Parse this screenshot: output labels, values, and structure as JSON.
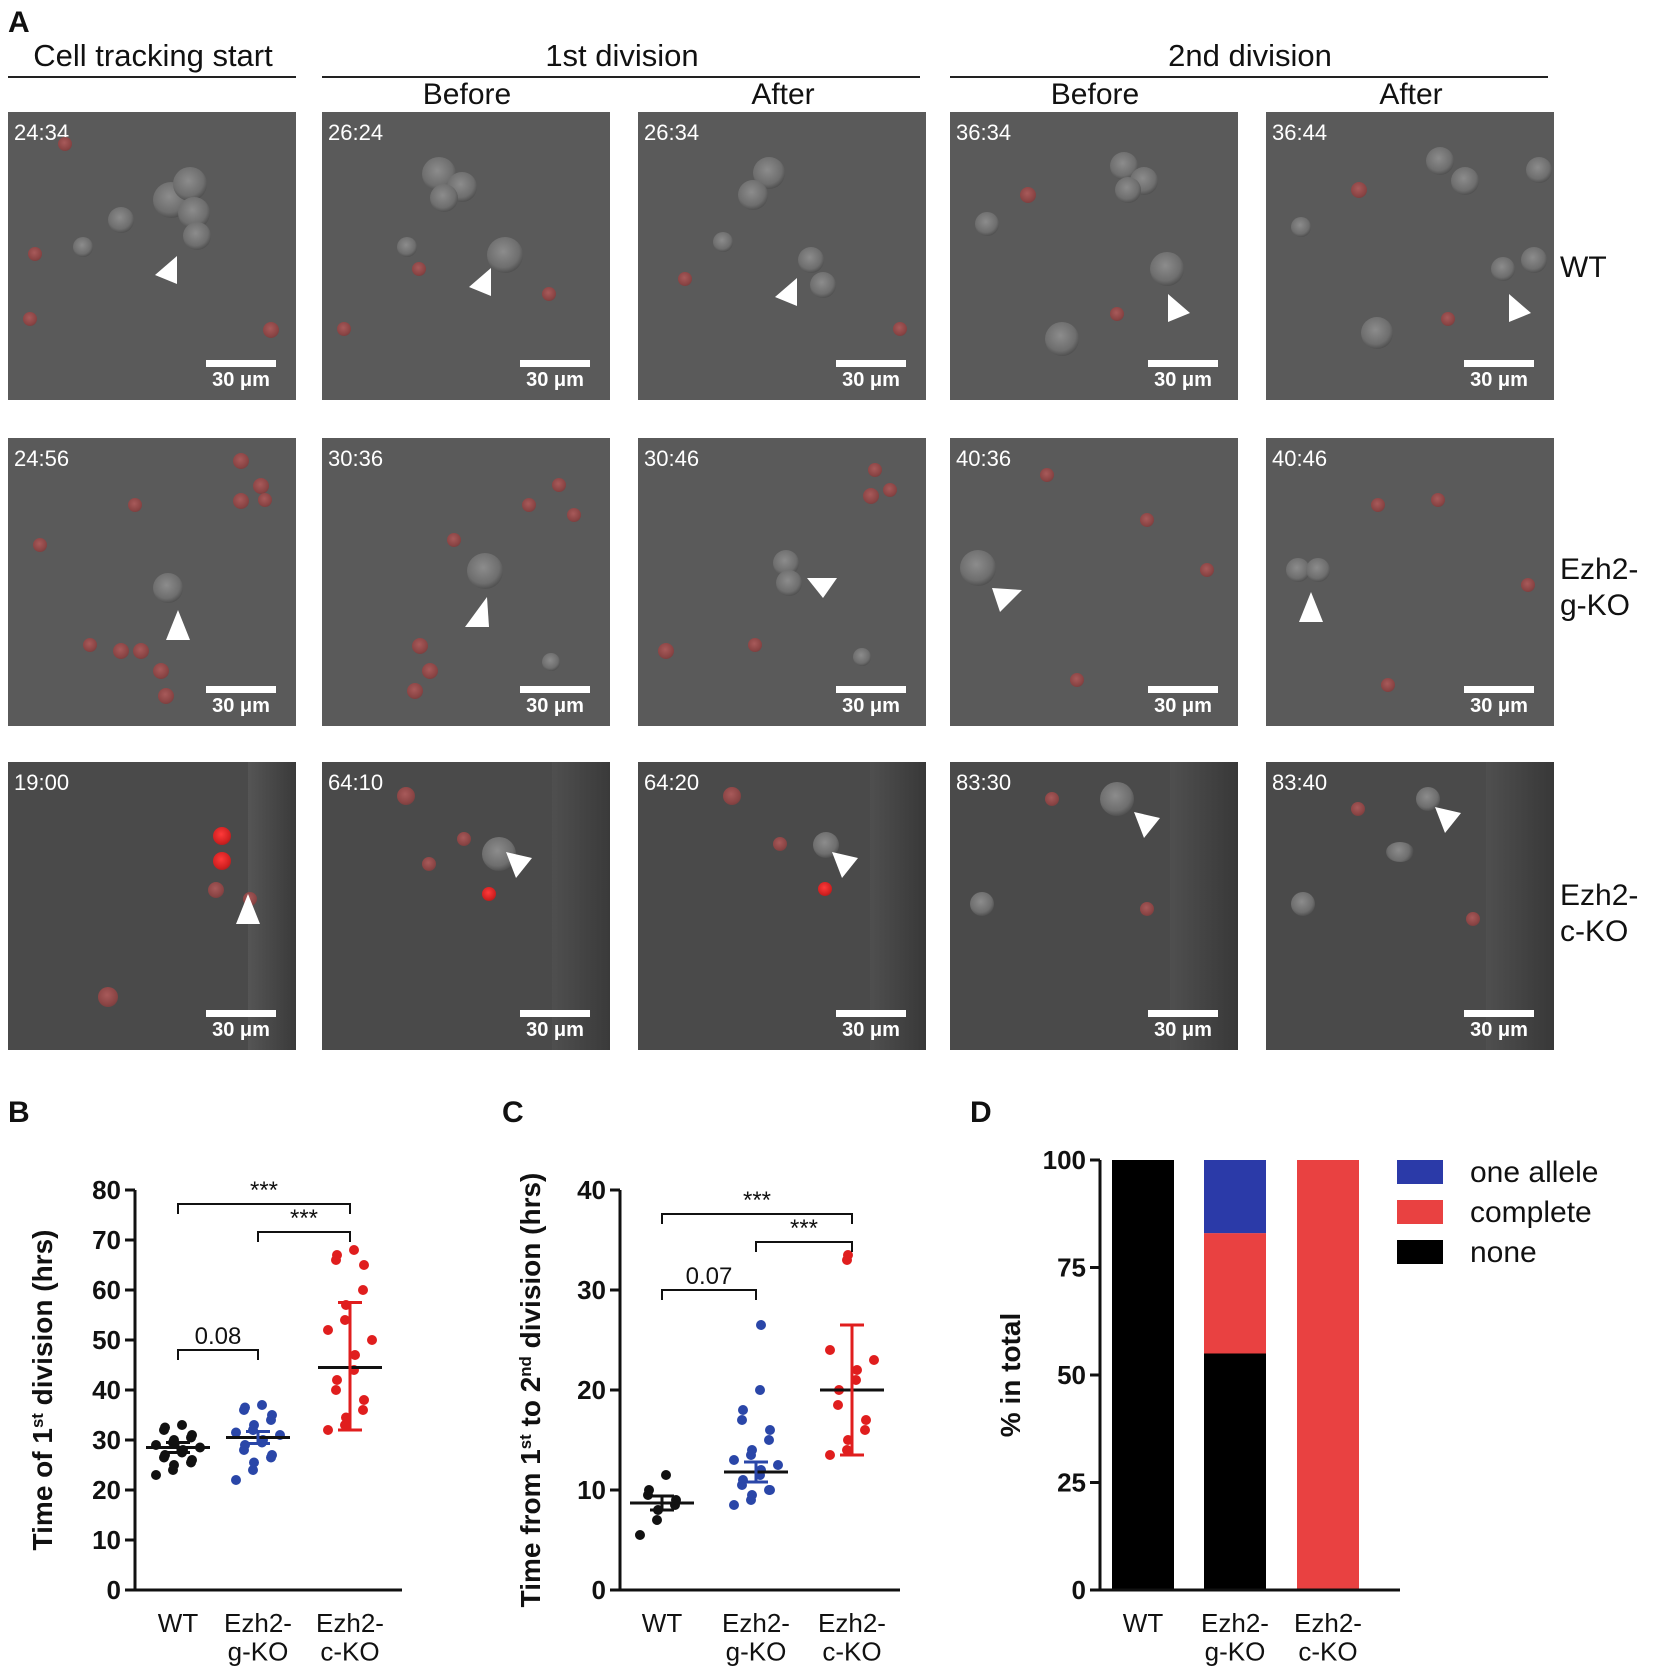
{
  "panel_a": {
    "label": "A",
    "headers": {
      "start": "Cell tracking start",
      "first": "1st division",
      "second": "2nd division",
      "before": "Before",
      "after": "After"
    },
    "row_labels": [
      "WT",
      "Ezh2-\ng-KO",
      "Ezh2-\nc-KO"
    ],
    "scale_bar": "30 μm",
    "timestamps": [
      [
        "24:34",
        "26:24",
        "26:34",
        "36:34",
        "36:44"
      ],
      [
        "24:56",
        "30:36",
        "30:46",
        "40:36",
        "40:46"
      ],
      [
        "19:00",
        "64:10",
        "64:20",
        "83:30",
        "83:40"
      ]
    ]
  },
  "chart_data": [
    {
      "panel": "B",
      "type": "scatter",
      "ylabel": "Time of 1st division (hrs)",
      "ylim": [
        0,
        80
      ],
      "yticks": [
        0,
        10,
        20,
        30,
        40,
        50,
        60,
        70,
        80
      ],
      "categories": [
        "WT",
        "Ezh2-\ng-KO",
        "Ezh2-\nc-KO"
      ],
      "colors": [
        "#111111",
        "#2a46a8",
        "#e01e1e"
      ],
      "series": [
        {
          "name": "WT",
          "values": [
            23,
            24,
            25,
            25.5,
            26,
            26.5,
            27,
            27.5,
            28,
            28.5,
            29,
            29.5,
            30,
            30.5,
            31,
            32,
            32.5,
            33
          ],
          "mean": 28.5,
          "err": [
            27.5,
            29.5
          ]
        },
        {
          "name": "Ezh2-g-KO",
          "values": [
            22,
            24,
            25.5,
            26.5,
            27,
            28,
            29,
            29.5,
            30,
            31,
            31.5,
            32,
            33,
            34,
            35,
            36,
            36.5,
            37
          ],
          "mean": 30.5,
          "err": [
            29.3,
            31.7
          ]
        },
        {
          "name": "Ezh2-c-KO",
          "values": [
            32,
            33,
            34.5,
            36,
            38,
            40,
            42,
            44,
            47,
            50,
            52,
            54,
            57,
            60,
            65,
            66,
            67,
            68
          ],
          "mean": 44.5,
          "err": [
            32,
            57.5
          ]
        }
      ],
      "annotations": [
        {
          "from": 0,
          "to": 2,
          "text": "***"
        },
        {
          "from": 1,
          "to": 2,
          "text": "***"
        },
        {
          "from": 0,
          "to": 1,
          "text": "0.08"
        }
      ]
    },
    {
      "panel": "C",
      "type": "scatter",
      "ylabel": "Time from 1st to 2nd division (hrs)",
      "ylim": [
        0,
        40
      ],
      "yticks": [
        0,
        10,
        20,
        30,
        40
      ],
      "categories": [
        "WT",
        "Ezh2-\ng-KO",
        "Ezh2-\nc-KO"
      ],
      "colors": [
        "#111111",
        "#2a46a8",
        "#e01e1e"
      ],
      "series": [
        {
          "name": "WT",
          "values": [
            5.5,
            7,
            8,
            8.5,
            9,
            9.5,
            10,
            11.5
          ],
          "mean": 8.7,
          "err": [
            8,
            9.4
          ]
        },
        {
          "name": "Ezh2-g-KO",
          "values": [
            8.5,
            9,
            9.5,
            10,
            10,
            10.5,
            11,
            11.5,
            12,
            12.5,
            13,
            13.5,
            14,
            15,
            16,
            17,
            18,
            20,
            26.5
          ],
          "mean": 11.8,
          "err": [
            10.8,
            12.8
          ]
        },
        {
          "name": "Ezh2-c-KO",
          "values": [
            13.5,
            14,
            15,
            16,
            17,
            18.5,
            20,
            21,
            22,
            23,
            24,
            33,
            33.5
          ],
          "mean": 20,
          "err": [
            13.5,
            26.5
          ]
        }
      ],
      "annotations": [
        {
          "from": 0,
          "to": 2,
          "text": "***"
        },
        {
          "from": 1,
          "to": 2,
          "text": "***"
        },
        {
          "from": 0,
          "to": 1,
          "text": "0.07"
        }
      ]
    },
    {
      "panel": "D",
      "type": "bar",
      "stacked": true,
      "ylabel": "% in total",
      "ylim": [
        0,
        100
      ],
      "yticks": [
        0,
        25,
        50,
        75,
        100
      ],
      "categories": [
        "WT",
        "Ezh2-\ng-KO",
        "Ezh2-\nc-KO"
      ],
      "series": [
        {
          "name": "none",
          "color": "#000000",
          "values": [
            100,
            55,
            0
          ]
        },
        {
          "name": "complete",
          "color": "#e94141",
          "values": [
            0,
            28,
            100
          ]
        },
        {
          "name": "one allele",
          "color": "#2b3aa8",
          "values": [
            0,
            17,
            0
          ]
        }
      ],
      "legend": [
        "one allele",
        "complete",
        "none"
      ]
    }
  ]
}
